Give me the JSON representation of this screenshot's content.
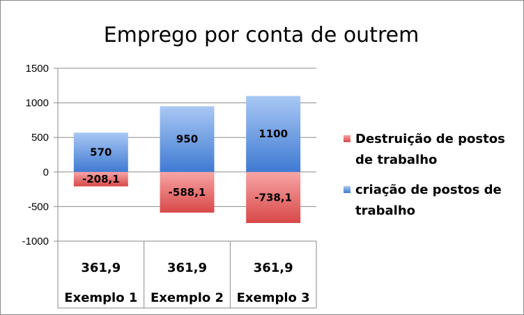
{
  "chart_data": {
    "type": "bar",
    "stacked": true,
    "title": "Emprego por conta de outrem",
    "categories": [
      "Exemplo 1",
      "Exemplo 2",
      "Exemplo 3"
    ],
    "table_row": [
      "361,9",
      "361,9",
      "361,9"
    ],
    "series": [
      {
        "name": "criação de postos de trabalho",
        "values": [
          570,
          950,
          1100
        ],
        "labels": [
          "570",
          "950",
          "1100"
        ],
        "color": "#4a86d8"
      },
      {
        "name": "Destruição de postos de trabalho",
        "values": [
          -208.1,
          -588.1,
          -738.1
        ],
        "labels": [
          "-208,1",
          "-588,1",
          "-738,1"
        ],
        "color": "#e05050"
      }
    ],
    "ylim": [
      -1000,
      1500
    ],
    "yticks": [
      1500,
      1000,
      500,
      0,
      -500,
      -1000
    ],
    "grid": true,
    "legend_position": "right",
    "legend": [
      {
        "line1": "Destruição de postos",
        "line2": "de trabalho"
      },
      {
        "line1": "criação de postos de",
        "line2": "trabalho"
      }
    ]
  }
}
